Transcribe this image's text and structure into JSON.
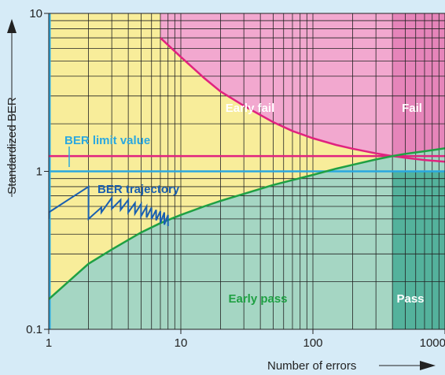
{
  "chart_data": {
    "type": "line",
    "title": "",
    "xlabel": "Number of errors",
    "ylabel": "Standardized BER",
    "xscale": "log",
    "yscale": "log",
    "xlim": [
      1,
      1000
    ],
    "ylim": [
      0.1,
      10
    ],
    "x_ticks": [
      {
        "value": 1,
        "label": "1"
      },
      {
        "value": 10,
        "label": "10"
      },
      {
        "value": 100,
        "label": "100"
      },
      {
        "value": 1000,
        "label": "1000"
      }
    ],
    "y_ticks": [
      {
        "value": 0.1,
        "label": "0.1"
      },
      {
        "value": 1,
        "label": "1"
      },
      {
        "value": 10,
        "label": "10"
      }
    ],
    "grid": true,
    "regions": [
      {
        "label": "Early fail",
        "color": "#f2a8cf"
      },
      {
        "label": "Fail",
        "color": "#e47fb6"
      },
      {
        "label": "Early pass",
        "color": "#a5d6c3"
      },
      {
        "label": "Pass",
        "color": "#54b29c"
      }
    ],
    "background_color": "#f8ed9a",
    "colors": {
      "limit": "#2aa8e0",
      "early_fail_line": "#e0237f",
      "early_pass_line": "#1fa043",
      "trajectory": "#1a5fb0"
    },
    "annotations": {
      "ber_limit_value": "BER limit value",
      "ber_trajectory": "BER trajectory"
    },
    "series": [
      {
        "role": "ber-limit",
        "x": [
          1,
          1000
        ],
        "y": [
          1,
          1
        ]
      },
      {
        "role": "fail-limit",
        "x": [
          1,
          1000
        ],
        "y": [
          1.25,
          1.25
        ]
      },
      {
        "role": "early-fail-limit",
        "x": [
          7,
          10,
          15,
          20,
          30,
          50,
          70,
          100,
          150,
          200,
          300,
          400,
          500,
          700,
          1000
        ],
        "y": [
          7.0,
          5.3,
          3.9,
          3.2,
          2.6,
          2.05,
          1.8,
          1.62,
          1.47,
          1.39,
          1.3,
          1.25,
          1.22,
          1.18,
          1.15
        ]
      },
      {
        "role": "early-pass-limit",
        "x": [
          1,
          1.5,
          2,
          3,
          5,
          7,
          10,
          15,
          20,
          30,
          50,
          70,
          100,
          150,
          200,
          300,
          400,
          500,
          700,
          1000
        ],
        "y": [
          0.155,
          0.21,
          0.26,
          0.32,
          0.41,
          0.47,
          0.53,
          0.6,
          0.65,
          0.72,
          0.82,
          0.88,
          0.95,
          1.04,
          1.1,
          1.19,
          1.25,
          1.29,
          1.34,
          1.4
        ]
      },
      {
        "role": "ber-trajectory",
        "x": [
          1,
          1,
          2,
          2,
          2.5,
          2.5,
          3,
          3,
          3.5,
          3.5,
          4,
          4,
          4.5,
          4.5,
          5,
          5,
          5.5,
          5.5,
          6,
          6,
          6.5,
          6.5,
          7,
          7,
          7.5,
          7.5,
          8,
          8
        ],
        "y": [
          0.5,
          0.55,
          0.8,
          0.5,
          0.59,
          0.55,
          0.68,
          0.58,
          0.66,
          0.57,
          0.66,
          0.55,
          0.63,
          0.54,
          0.62,
          0.52,
          0.6,
          0.51,
          0.59,
          0.5,
          0.57,
          0.49,
          0.56,
          0.47,
          0.55,
          0.46,
          0.53,
          0.45
        ]
      }
    ]
  }
}
